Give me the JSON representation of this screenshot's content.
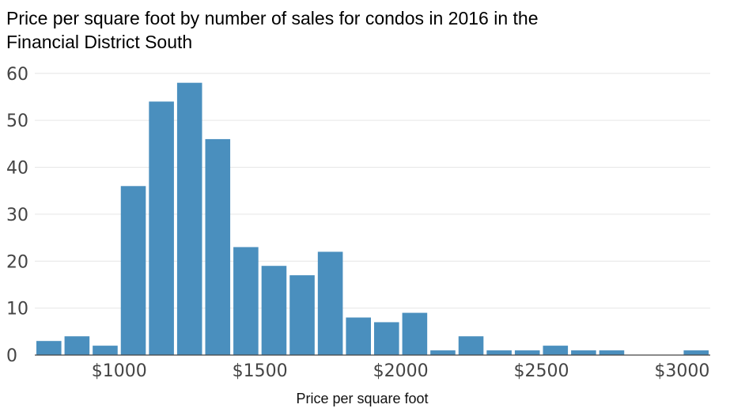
{
  "chart_data": {
    "type": "bar",
    "title_lines": [
      "Price per square foot by number of sales for condos in 2016 in the",
      "Financial District South"
    ],
    "xlabel": "Price per square foot",
    "ylabel": "",
    "bar_color": "#4a8fbe",
    "grid": true,
    "ylim": [
      0,
      63
    ],
    "xlim": [
      700,
      3100
    ],
    "yticks": [
      0,
      10,
      20,
      30,
      40,
      50,
      60
    ],
    "xticks": [
      {
        "value": 1000,
        "label": "$1000"
      },
      {
        "value": 1500,
        "label": "$1500"
      },
      {
        "value": 2000,
        "label": "$2000"
      },
      {
        "value": 2500,
        "label": "$2500"
      },
      {
        "value": 3000,
        "label": "$3000"
      }
    ],
    "bin_width": 100,
    "bins": [
      {
        "start": 700,
        "count": 3
      },
      {
        "start": 800,
        "count": 4
      },
      {
        "start": 900,
        "count": 2
      },
      {
        "start": 1000,
        "count": 36
      },
      {
        "start": 1100,
        "count": 54
      },
      {
        "start": 1200,
        "count": 58
      },
      {
        "start": 1300,
        "count": 46
      },
      {
        "start": 1400,
        "count": 23
      },
      {
        "start": 1500,
        "count": 19
      },
      {
        "start": 1600,
        "count": 17
      },
      {
        "start": 1700,
        "count": 22
      },
      {
        "start": 1800,
        "count": 8
      },
      {
        "start": 1900,
        "count": 7
      },
      {
        "start": 2000,
        "count": 9
      },
      {
        "start": 2100,
        "count": 1
      },
      {
        "start": 2200,
        "count": 4
      },
      {
        "start": 2300,
        "count": 1
      },
      {
        "start": 2400,
        "count": 1
      },
      {
        "start": 2500,
        "count": 2
      },
      {
        "start": 2600,
        "count": 1
      },
      {
        "start": 2700,
        "count": 1
      },
      {
        "start": 2800,
        "count": 0
      },
      {
        "start": 2900,
        "count": 0
      },
      {
        "start": 3000,
        "count": 1
      }
    ]
  }
}
